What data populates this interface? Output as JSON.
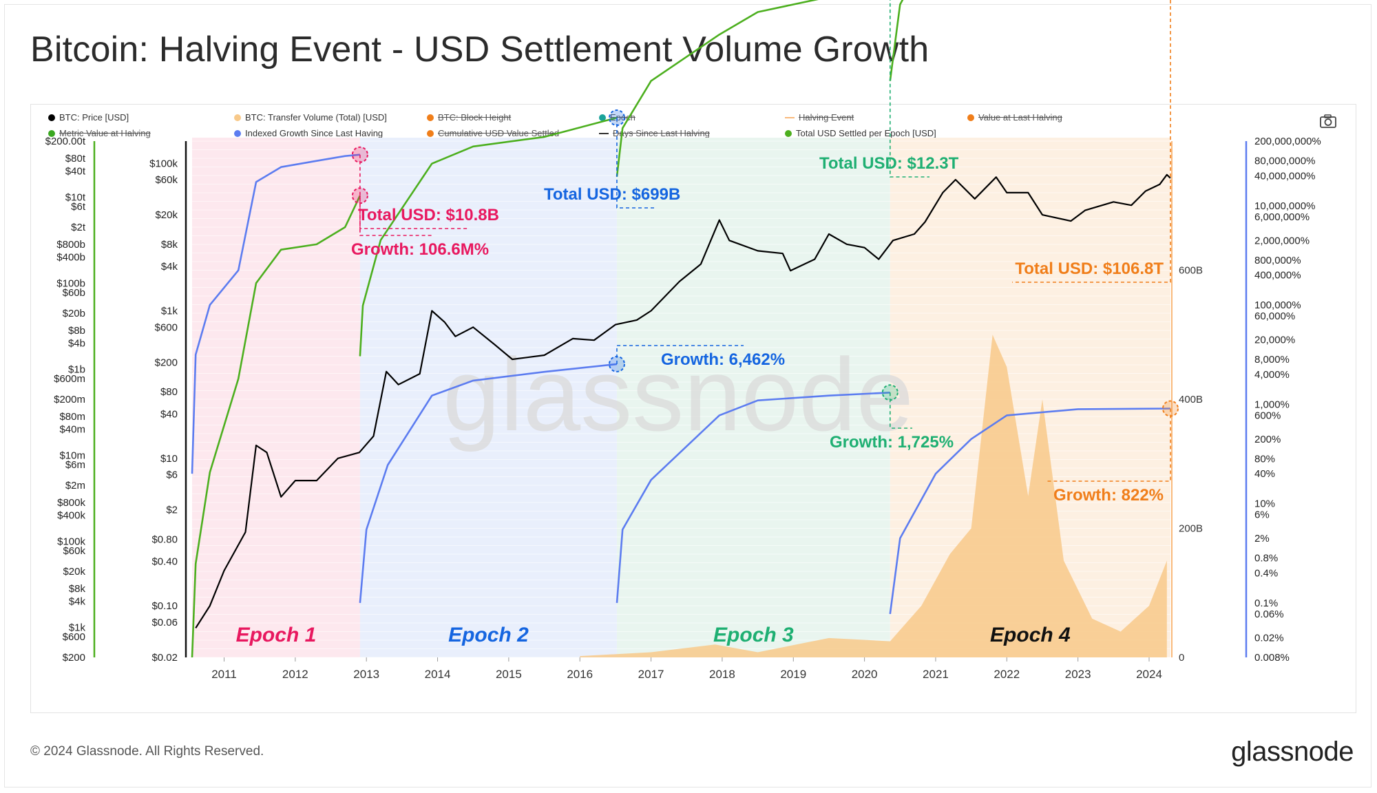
{
  "title": "Bitcoin: Halving Event - USD Settlement Volume Growth",
  "footer": {
    "copyright": "© 2024 Glassnode. All Rights Reserved.",
    "logo": "glassnode"
  },
  "watermark": "glassnode",
  "toolbar": {
    "camera_icon": "camera-icon"
  },
  "legend": [
    {
      "label": "BTC: Price [USD]",
      "color": "#000000",
      "kind": "dot",
      "enabled": true
    },
    {
      "label": "BTC: Transfer Volume (Total) [USD]",
      "color": "#f8c98a",
      "kind": "dot",
      "enabled": true
    },
    {
      "label": "BTC: Block Height",
      "color": "#f07e1a",
      "kind": "dot",
      "enabled": false
    },
    {
      "label": "Epoch",
      "color": "#1aa39a",
      "kind": "dot",
      "enabled": false
    },
    {
      "label": "Halving Event",
      "color": "#f9b97b",
      "kind": "line",
      "enabled": false
    },
    {
      "label": "Value at Last Halving",
      "color": "#f07e1a",
      "kind": "dot",
      "enabled": false
    },
    {
      "label": "Metric Value at Halving",
      "color": "#3aa820",
      "kind": "dot",
      "enabled": false
    },
    {
      "label": "Indexed Growth Since Last Having",
      "color": "#5c7cf0",
      "kind": "dot",
      "enabled": true
    },
    {
      "label": "Cumulative USD Value Settled",
      "color": "#f07e1a",
      "kind": "dot",
      "enabled": false
    },
    {
      "label": "Days Since Last Halving",
      "color": "#333333",
      "kind": "line",
      "enabled": false
    },
    {
      "label": "Total USD Settled per Epoch [USD]",
      "color": "#4caf1e",
      "kind": "dot",
      "enabled": true
    }
  ],
  "axes": {
    "x_ticks": [
      "2011",
      "2012",
      "2013",
      "2014",
      "2015",
      "2016",
      "2017",
      "2018",
      "2019",
      "2020",
      "2021",
      "2022",
      "2023",
      "2024"
    ],
    "far_left_ticks": [
      "$200.00t",
      "$80t",
      "$40t",
      "$10t",
      "$6t",
      "$2t",
      "$800b",
      "$400b",
      "$100b",
      "$60b",
      "$20b",
      "$8b",
      "$4b",
      "$1b",
      "$600m",
      "$200m",
      "$80m",
      "$40m",
      "$10m",
      "$6m",
      "$2m",
      "$800k",
      "$400k",
      "$100k",
      "$60k",
      "$20k",
      "$8k",
      "$4k",
      "$1k",
      "$600",
      "$200"
    ],
    "price_ticks": [
      "$100k",
      "$60k",
      "$20k",
      "$8k",
      "$4k",
      "$1k",
      "$600",
      "$200",
      "$80",
      "$40",
      "$10",
      "$6",
      "$2",
      "$0.80",
      "$0.40",
      "$0.10",
      "$0.06",
      "$0.02"
    ],
    "volume_ticks": [
      "600B",
      "400B",
      "200B",
      "0"
    ],
    "growth_ticks": [
      "200,000,000%",
      "80,000,000%",
      "40,000,000%",
      "10,000,000%",
      "6,000,000%",
      "2,000,000%",
      "800,000%",
      "400,000%",
      "100,000%",
      "60,000%",
      "20,000%",
      "8,000%",
      "4,000%",
      "1,000%",
      "600%",
      "200%",
      "80%",
      "40%",
      "10%",
      "6%",
      "2%",
      "0.8%",
      "0.4%",
      "0.1%",
      "0.06%",
      "0.02%",
      "0.008%"
    ],
    "price_log_range": [
      0.02,
      200000
    ],
    "volume_range": [
      0,
      800000000000
    ],
    "growth_log_range": [
      0.008,
      200000000
    ]
  },
  "epochs": [
    {
      "label": "Epoch 1",
      "color": "#e8185f",
      "bg": "#fde8ee",
      "start": 2010.55,
      "end": 2012.91
    },
    {
      "label": "Epoch 2",
      "color": "#1565e0",
      "bg": "#e9effc",
      "start": 2012.91,
      "end": 2016.52
    },
    {
      "label": "Epoch 3",
      "color": "#1eaf72",
      "bg": "#e9f5ef",
      "start": 2016.52,
      "end": 2020.36
    },
    {
      "label": "Epoch 4",
      "color": "#111111",
      "bg": "#fdf0e2",
      "start": 2020.36,
      "end": 2024.3
    }
  ],
  "annotations": [
    {
      "total": "Total USD: $10.8B",
      "growth": "Growth: 106.6M%",
      "color": "#e8185f"
    },
    {
      "total": "Total USD: $699B",
      "growth": "Growth: 6,462%",
      "color": "#1565e0"
    },
    {
      "total": "Total USD: $12.3T",
      "growth": "Growth: 1,725%",
      "color": "#1eaf72"
    },
    {
      "total": "Total USD: $106.8T",
      "growth": "Growth: 822%",
      "color": "#f07e1a"
    }
  ],
  "chart_data": {
    "type": "line",
    "title": "Bitcoin: Halving Event - USD Settlement Volume Growth",
    "x_range": [
      2010.55,
      2024.3
    ],
    "grid": true,
    "legend_position": "top",
    "series": [
      {
        "name": "BTC: Price [USD]",
        "axis": "price",
        "color": "#000000",
        "points": [
          [
            2010.6,
            0.05
          ],
          [
            2010.8,
            0.1
          ],
          [
            2011.0,
            0.3
          ],
          [
            2011.3,
            1
          ],
          [
            2011.45,
            15
          ],
          [
            2011.6,
            12
          ],
          [
            2011.8,
            3
          ],
          [
            2012.0,
            5
          ],
          [
            2012.3,
            5
          ],
          [
            2012.6,
            10
          ],
          [
            2012.9,
            12
          ],
          [
            2013.1,
            20
          ],
          [
            2013.28,
            150
          ],
          [
            2013.45,
            100
          ],
          [
            2013.75,
            140
          ],
          [
            2013.92,
            1000
          ],
          [
            2014.1,
            700
          ],
          [
            2014.25,
            450
          ],
          [
            2014.5,
            600
          ],
          [
            2014.8,
            350
          ],
          [
            2015.05,
            220
          ],
          [
            2015.5,
            250
          ],
          [
            2015.9,
            420
          ],
          [
            2016.2,
            400
          ],
          [
            2016.5,
            650
          ],
          [
            2016.8,
            750
          ],
          [
            2017.0,
            1000
          ],
          [
            2017.4,
            2500
          ],
          [
            2017.7,
            4300
          ],
          [
            2017.96,
            17000
          ],
          [
            2018.1,
            9000
          ],
          [
            2018.5,
            6500
          ],
          [
            2018.85,
            6000
          ],
          [
            2018.96,
            3500
          ],
          [
            2019.3,
            5000
          ],
          [
            2019.5,
            11000
          ],
          [
            2019.75,
            8000
          ],
          [
            2020.0,
            7200
          ],
          [
            2020.2,
            5000
          ],
          [
            2020.4,
            9000
          ],
          [
            2020.7,
            11000
          ],
          [
            2020.85,
            16000
          ],
          [
            2021.1,
            40000
          ],
          [
            2021.28,
            60000
          ],
          [
            2021.55,
            33000
          ],
          [
            2021.85,
            65000
          ],
          [
            2022.0,
            40000
          ],
          [
            2022.3,
            40000
          ],
          [
            2022.5,
            20000
          ],
          [
            2022.9,
            16500
          ],
          [
            2023.1,
            23000
          ],
          [
            2023.5,
            30000
          ],
          [
            2023.75,
            27000
          ],
          [
            2023.95,
            42000
          ],
          [
            2024.15,
            52000
          ],
          [
            2024.25,
            70000
          ],
          [
            2024.3,
            63000
          ]
        ]
      },
      {
        "name": "Total USD Settled per Epoch [USD]",
        "axis": "far_left",
        "color": "#4caf1e",
        "segments": [
          [
            [
              2010.55,
              200
            ],
            [
              2010.6,
              30000
            ],
            [
              2010.8,
              4000000
            ],
            [
              2011.2,
              600000000
            ],
            [
              2011.45,
              100000000000
            ],
            [
              2011.8,
              600000000000
            ],
            [
              2012.3,
              800000000000
            ],
            [
              2012.7,
              2000000000000
            ],
            [
              2012.91,
              10800000000000
            ]
          ],
          [
            [
              2012.91,
              2000000000
            ],
            [
              2012.95,
              30000000000
            ],
            [
              2013.2,
              1000000000000
            ],
            [
              2013.92,
              60000000000000
            ],
            [
              2014.5,
              150000000000000
            ],
            [
              2015.5,
              250000000000000
            ],
            [
              2016.52,
              699000000000000
            ]
          ],
          [
            [
              2016.52,
              30000000000000
            ],
            [
              2016.6,
              400000000000000
            ],
            [
              2017.0,
              5000000000000000
            ],
            [
              2017.96,
              60000000000000000
            ],
            [
              2018.5,
              200000000000000000
            ],
            [
              2019.5,
              450000000000000000
            ],
            [
              2020.36,
              12300000000000000000
            ]
          ],
          [
            [
              2020.36,
              5000000000000000
            ],
            [
              2020.5,
              300000000000000000
            ],
            [
              2021.0,
              10000000000000000000
            ],
            [
              2021.5,
              60000000000000000000
            ],
            [
              2022.0,
              110000000000000000000
            ],
            [
              2023.0,
              140000000000000000000
            ],
            [
              2024.3,
              106800000000000000000
            ]
          ]
        ]
      },
      {
        "name": "Indexed Growth Since Last Having",
        "axis": "growth",
        "color": "#5c7cf0",
        "segments": [
          [
            [
              2010.55,
              40
            ],
            [
              2010.6,
              10000
            ],
            [
              2010.8,
              100000
            ],
            [
              2011.2,
              500000
            ],
            [
              2011.45,
              30000000
            ],
            [
              2011.8,
              60000000
            ],
            [
              2012.3,
              80000000
            ],
            [
              2012.7,
              100000000
            ],
            [
              2012.91,
              106600000
            ]
          ],
          [
            [
              2012.91,
              0.1
            ],
            [
              2013.0,
              3
            ],
            [
              2013.3,
              60
            ],
            [
              2013.92,
              1500
            ],
            [
              2014.5,
              3000
            ],
            [
              2015.5,
              4500
            ],
            [
              2016.52,
              6462
            ]
          ],
          [
            [
              2016.52,
              0.1
            ],
            [
              2016.6,
              3
            ],
            [
              2017.0,
              30
            ],
            [
              2017.96,
              600
            ],
            [
              2018.5,
              1200
            ],
            [
              2019.5,
              1500
            ],
            [
              2020.36,
              1725
            ]
          ],
          [
            [
              2020.36,
              0.06
            ],
            [
              2020.5,
              2
            ],
            [
              2021.0,
              40
            ],
            [
              2021.5,
              200
            ],
            [
              2022.0,
              600
            ],
            [
              2023.0,
              800
            ],
            [
              2024.3,
              822
            ]
          ]
        ]
      },
      {
        "name": "BTC: Transfer Volume (Total) [USD]",
        "axis": "volume",
        "color": "#f8c98a",
        "points": [
          [
            2016.0,
            2000000000
          ],
          [
            2017.0,
            8000000000
          ],
          [
            2017.9,
            20000000000
          ],
          [
            2018.5,
            8000000000
          ],
          [
            2019.5,
            30000000000
          ],
          [
            2020.36,
            25000000000
          ],
          [
            2020.8,
            80000000000
          ],
          [
            2021.2,
            160000000000
          ],
          [
            2021.5,
            200000000000
          ],
          [
            2021.8,
            500000000000
          ],
          [
            2022.0,
            450000000000
          ],
          [
            2022.3,
            250000000000
          ],
          [
            2022.5,
            400000000000
          ],
          [
            2022.8,
            150000000000
          ],
          [
            2023.2,
            60000000000
          ],
          [
            2023.6,
            40000000000
          ],
          [
            2024.0,
            80000000000
          ],
          [
            2024.25,
            150000000000
          ]
        ]
      }
    ]
  }
}
